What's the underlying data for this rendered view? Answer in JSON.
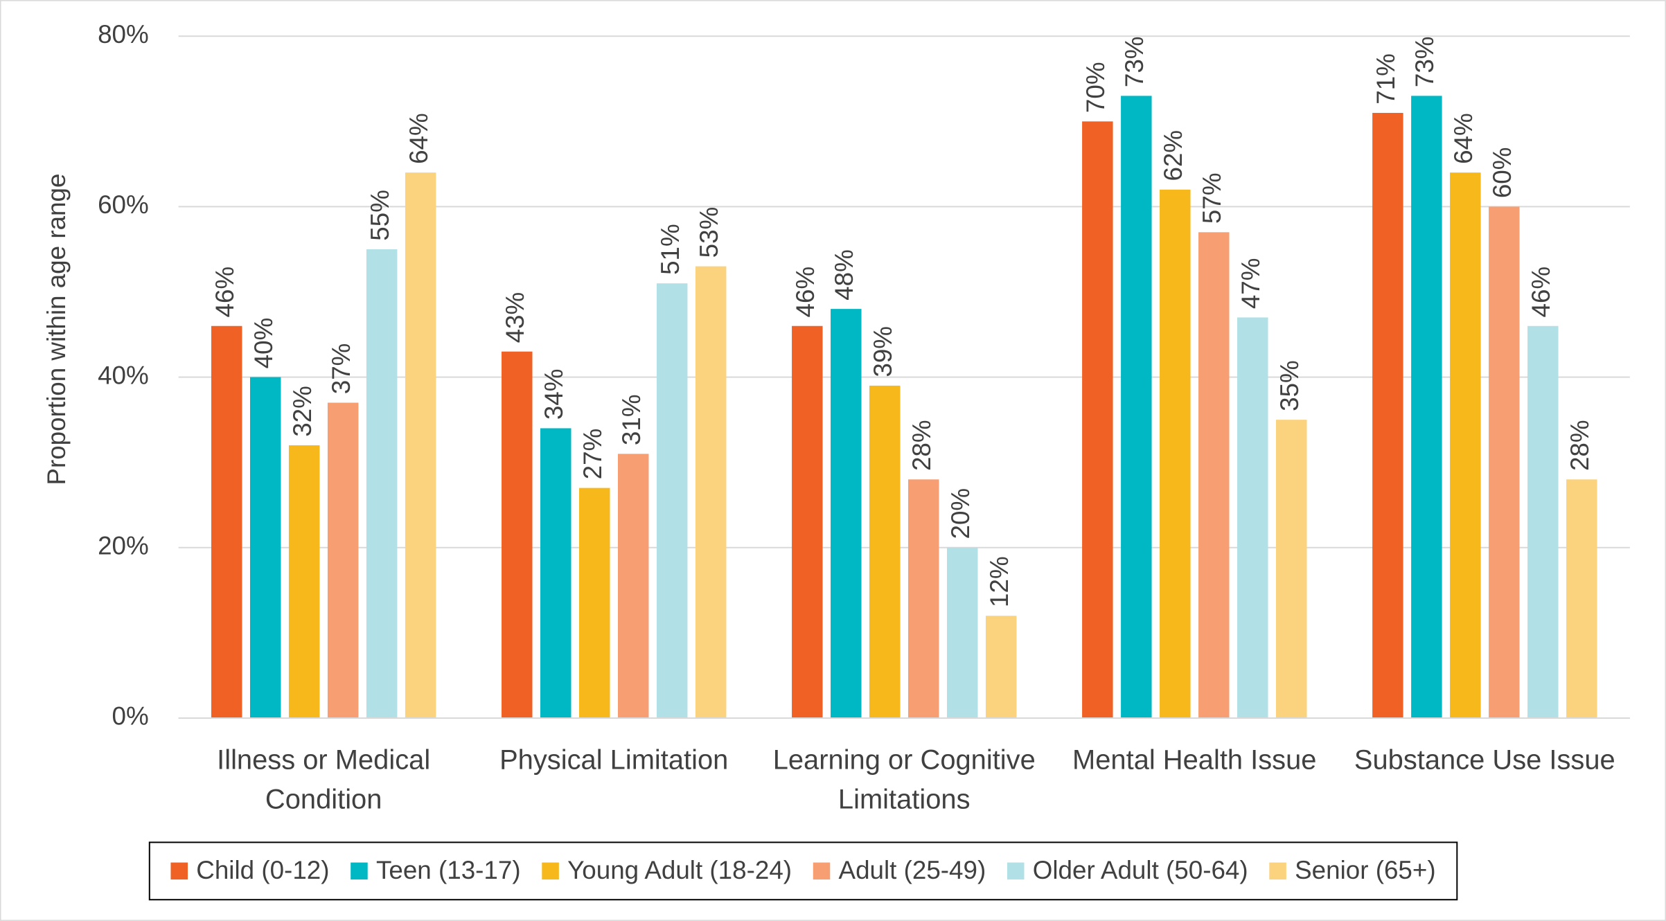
{
  "chart_data": {
    "type": "bar",
    "y_label": "Proportion within age range",
    "categories": [
      "Illness or Medical Condition",
      "Physical Limitation",
      "Learning or Cognitive Limitations",
      "Mental Health Issue",
      "Substance Use Issue"
    ],
    "series": [
      {
        "name": "Child (0-12)",
        "color": "#f06125",
        "values": [
          46,
          43,
          46,
          70,
          71
        ],
        "value_labels": [
          "46%",
          "43%",
          "46%",
          "70%",
          "71%"
        ]
      },
      {
        "name": "Teen (13-17)",
        "color": "#00b8c4",
        "values": [
          40,
          34,
          48,
          73,
          73
        ],
        "value_labels": [
          "40%",
          "34%",
          "48%",
          "73%",
          "73%"
        ]
      },
      {
        "name": "Young Adult (18-24)",
        "color": "#f6b81a",
        "values": [
          32,
          27,
          39,
          62,
          64
        ],
        "value_labels": [
          "32%",
          "27%",
          "39%",
          "62%",
          "64%"
        ]
      },
      {
        "name": "Adult (25-49)",
        "color": "#f79f72",
        "values": [
          37,
          31,
          28,
          57,
          60
        ],
        "value_labels": [
          "37%",
          "31%",
          "28%",
          "57%",
          "60%"
        ]
      },
      {
        "name": "Older Adult (50-64)",
        "color": "#b1e0e6",
        "values": [
          55,
          51,
          20,
          47,
          46
        ],
        "value_labels": [
          "55%",
          "51%",
          "20%",
          "47%",
          "46%"
        ]
      },
      {
        "name": "Senior (65+)",
        "color": "#fbd27e",
        "values": [
          64,
          53,
          12,
          35,
          28
        ],
        "value_labels": [
          "64%",
          "53%",
          "12%",
          "35%",
          "28%"
        ]
      }
    ],
    "ylim": [
      0,
      80
    ],
    "yticks": [
      {
        "value": 0,
        "label": "0%"
      },
      {
        "value": 20,
        "label": "20%"
      },
      {
        "value": 40,
        "label": "40%"
      },
      {
        "value": 60,
        "label": "60%"
      },
      {
        "value": 80,
        "label": "80%"
      }
    ],
    "grid": true,
    "legend": "bottom"
  }
}
